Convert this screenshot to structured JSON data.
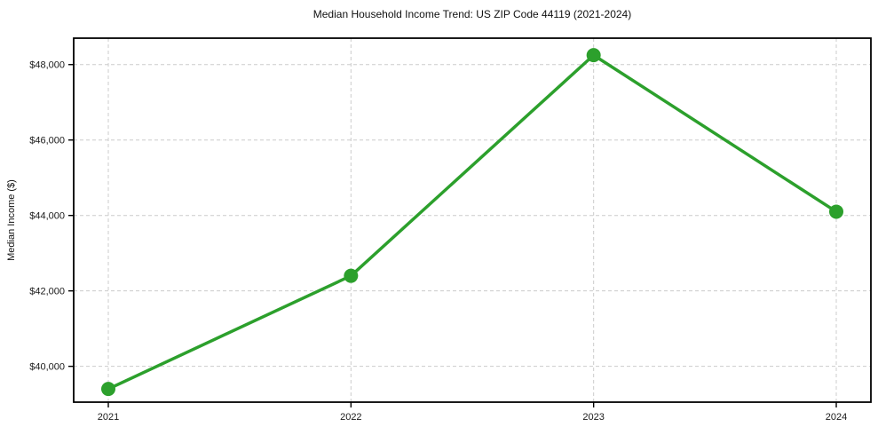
{
  "chart_data": {
    "type": "line",
    "title": "Median Household Income Trend: US ZIP Code 44119 (2021-2024)",
    "ylabel": "Median Income ($)",
    "xlabel": "",
    "categories": [
      "2021",
      "2022",
      "2023",
      "2024"
    ],
    "values": [
      39400,
      42400,
      48250,
      44100
    ],
    "value_labels": [
      "$39,400",
      "$42,400",
      "$48,250",
      "$44,100"
    ],
    "line_color": "#2ca02c",
    "marker": "circle",
    "ylim": [
      39050,
      48700
    ],
    "yticks": [
      40000,
      42000,
      44000,
      46000,
      48000
    ],
    "ytick_labels": [
      "$40,000",
      "$42,000",
      "$44,000",
      "$46,000",
      "$48,000"
    ],
    "grid": {
      "show": true,
      "linestyle": "dashed",
      "color": "#cccccc"
    },
    "legend_position": "none",
    "axes_color": "#000000",
    "text_color": "#1a1a1a",
    "background": "#ffffff"
  }
}
